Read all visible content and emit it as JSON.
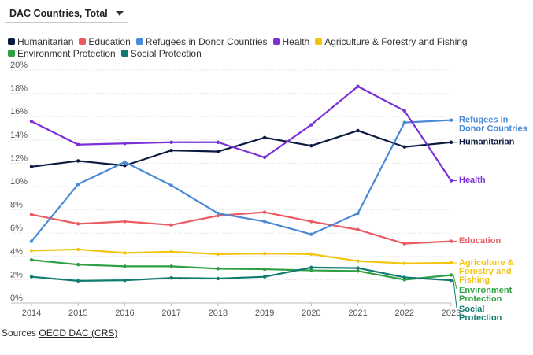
{
  "dropdown": {
    "label": "DAC Countries, Total"
  },
  "sources": {
    "prefix": "Sources",
    "link": "OECD DAC (CRS)"
  },
  "chart_data": {
    "type": "line",
    "title": "",
    "xlabel": "",
    "ylabel": "",
    "x": [
      2014,
      2015,
      2016,
      2017,
      2018,
      2019,
      2020,
      2021,
      2022,
      2023
    ],
    "ylim": [
      0,
      20
    ],
    "y_ticks": [
      "0%",
      "2%",
      "4%",
      "6%",
      "8%",
      "10%",
      "12%",
      "14%",
      "16%",
      "18%",
      "20%"
    ],
    "grid": true,
    "legend_position": "top",
    "series": [
      {
        "name": "Humanitarian",
        "color": "#0b1a40",
        "label_lines": [
          "Humanitarian"
        ],
        "values": [
          11.7,
          12.2,
          11.8,
          13.1,
          13.0,
          14.2,
          13.5,
          14.8,
          13.4,
          13.8
        ]
      },
      {
        "name": "Education",
        "color": "#ec5a5f",
        "label_lines": [
          "Education"
        ],
        "values": [
          7.6,
          6.8,
          7.0,
          6.7,
          7.5,
          7.8,
          7.0,
          6.3,
          5.1,
          5.3
        ]
      },
      {
        "name": "Refugees in Donor Countries",
        "color": "#4a8ad8",
        "label_lines": [
          "Refugees in",
          "Donor Countries"
        ],
        "values": [
          5.3,
          10.2,
          12.1,
          10.1,
          7.7,
          7.0,
          5.9,
          7.7,
          15.5,
          15.7
        ]
      },
      {
        "name": "Health",
        "color": "#7b2fd6",
        "label_lines": [
          "Health"
        ],
        "values": [
          15.6,
          13.6,
          13.7,
          13.8,
          13.8,
          12.5,
          15.3,
          18.6,
          16.5,
          10.5
        ]
      },
      {
        "name": "Agriculture & Forestry and Fishing",
        "color": "#f2c40f",
        "label_lines": [
          "Agriculture &",
          "Forestry and",
          "Fishing"
        ],
        "values": [
          4.5,
          4.6,
          4.3,
          4.4,
          4.2,
          4.25,
          4.2,
          3.6,
          3.4,
          3.45
        ]
      },
      {
        "name": "Environment Protection",
        "color": "#2ea043",
        "label_lines": [
          "Environment",
          "Protection"
        ],
        "values": [
          3.7,
          3.3,
          3.15,
          3.15,
          2.95,
          2.9,
          2.8,
          2.75,
          2.0,
          2.4
        ]
      },
      {
        "name": "Social Protection",
        "color": "#0f7b6f",
        "label_lines": [
          "Social",
          "Protection"
        ],
        "values": [
          2.25,
          1.9,
          1.95,
          2.15,
          2.1,
          2.25,
          3.05,
          3.0,
          2.2,
          1.95
        ]
      }
    ]
  }
}
